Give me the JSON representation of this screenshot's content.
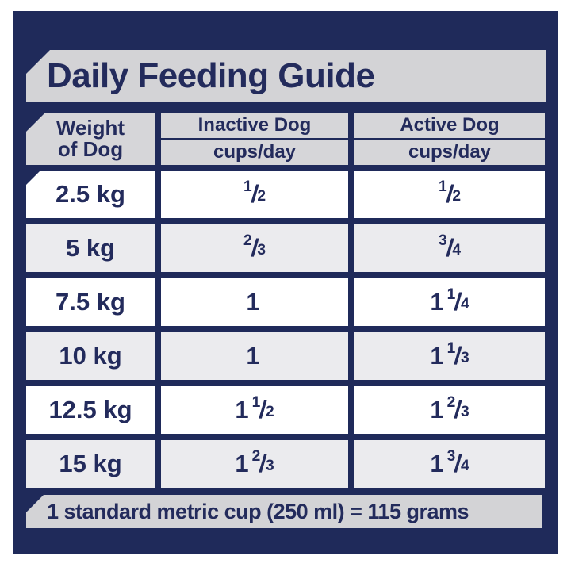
{
  "title": "Daily Feeding Guide",
  "table": {
    "weight_header": {
      "line1": "Weight",
      "line2": "of Dog"
    },
    "columns": [
      {
        "label": "Inactive Dog",
        "unit": "cups/day"
      },
      {
        "label": "Active Dog",
        "unit": "cups/day"
      }
    ],
    "rows": [
      {
        "weight": "2.5 kg",
        "inactive": {
          "whole": "",
          "num": "1",
          "slash": "/",
          "den": "2"
        },
        "active": {
          "whole": "",
          "num": "1",
          "slash": "/",
          "den": "2"
        }
      },
      {
        "weight": "5 kg",
        "inactive": {
          "whole": "",
          "num": "2",
          "slash": "/",
          "den": "3"
        },
        "active": {
          "whole": "",
          "num": "3",
          "slash": "/",
          "den": "4"
        }
      },
      {
        "weight": "7.5 kg",
        "inactive": {
          "whole": "1",
          "num": "",
          "slash": "",
          "den": ""
        },
        "active": {
          "whole": "1",
          "num": "1",
          "slash": "/",
          "den": "4"
        }
      },
      {
        "weight": "10 kg",
        "inactive": {
          "whole": "1",
          "num": "",
          "slash": "",
          "den": ""
        },
        "active": {
          "whole": "1",
          "num": "1",
          "slash": "/",
          "den": "3"
        }
      },
      {
        "weight": "12.5 kg",
        "inactive": {
          "whole": "1",
          "num": "1",
          "slash": "/",
          "den": "2"
        },
        "active": {
          "whole": "1",
          "num": "2",
          "slash": "/",
          "den": "3"
        }
      },
      {
        "weight": "15 kg",
        "inactive": {
          "whole": "1",
          "num": "2",
          "slash": "/",
          "den": "3"
        },
        "active": {
          "whole": "1",
          "num": "3",
          "slash": "/",
          "den": "4"
        }
      }
    ]
  },
  "footnote": "1 standard metric cup (250 ml) = 115 grams",
  "colors": {
    "panel_navy": "#1f2a5a",
    "text_navy": "#232b5c",
    "banner_gray": "#d3d3d6",
    "row_gray": "#ebebee",
    "row_white": "#ffffff"
  }
}
